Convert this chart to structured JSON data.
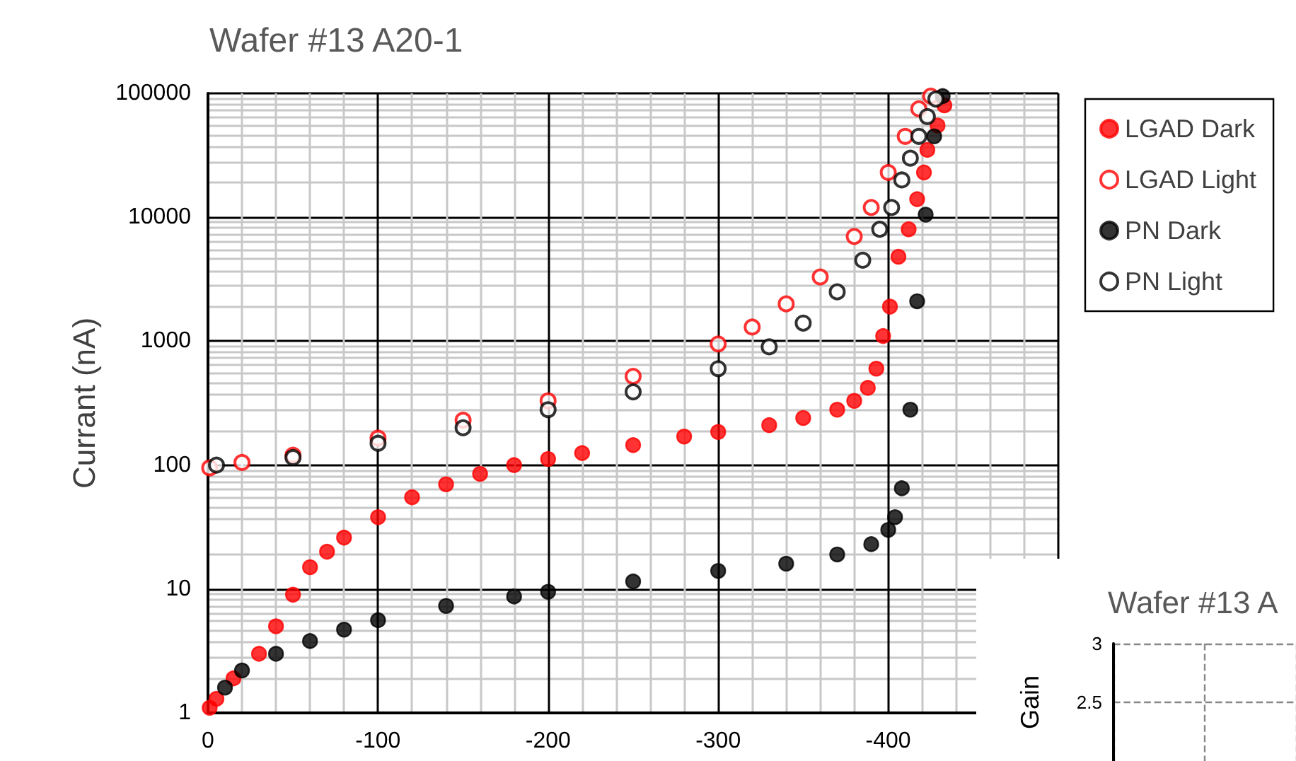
{
  "chart_data": [
    {
      "type": "scatter",
      "title": "Wafer #13 A20-1",
      "ylabel": "Currant (nA)",
      "log": "y",
      "grid": true,
      "legend": "right",
      "marker": "circle",
      "xlim": [
        0,
        -500
      ],
      "xticks": [
        0,
        -100,
        -200,
        -300,
        -400,
        {
          "value": -500,
          "label": null
        }
      ],
      "ylim": [
        1,
        100000
      ],
      "yticks": [
        1,
        10,
        100,
        1000,
        10000,
        100000
      ],
      "series": [
        {
          "name": "LGAD Dark",
          "color": "#ff0000",
          "x": [
            -1,
            -5,
            -15,
            -30,
            -40,
            -50,
            -60,
            -70,
            -80,
            -100,
            -120,
            -140,
            -160,
            -180,
            -200,
            -220,
            -250,
            -280,
            -300,
            -330,
            -350,
            -370,
            -380,
            -388,
            -393,
            -397,
            -401,
            -406,
            -412,
            -417,
            -421,
            -423,
            -429,
            -433
          ],
          "values": [
            1.1,
            1.3,
            1.9,
            3,
            5,
            9,
            15,
            20,
            26,
            38,
            55,
            70,
            85,
            100,
            112,
            125,
            145,
            170,
            185,
            210,
            240,
            280,
            330,
            420,
            600,
            1100,
            1900,
            4800,
            8000,
            14000,
            23000,
            35000,
            55000,
            80000
          ]
        },
        {
          "name": "LGAD Light",
          "color": "#ff0000",
          "marker": "open circle",
          "x": [
            -1,
            -20,
            -50,
            -100,
            -150,
            -200,
            -250,
            -300,
            -320,
            -340,
            -360,
            -380,
            -390,
            -400,
            -410,
            -418,
            -425
          ],
          "values": [
            95,
            105,
            120,
            165,
            230,
            330,
            520,
            950,
            1300,
            2000,
            3300,
            7000,
            12000,
            23000,
            45000,
            75000,
            95000
          ]
        },
        {
          "name": "PN Dark",
          "color": "#000000",
          "x": [
            -10,
            -20,
            -40,
            -60,
            -80,
            -100,
            -140,
            -180,
            -200,
            -250,
            -300,
            -340,
            -370,
            -390,
            -400,
            -404,
            -408,
            -413,
            -417,
            -422,
            -427,
            -432
          ],
          "values": [
            1.6,
            2.2,
            3,
            3.8,
            4.7,
            5.6,
            7.3,
            8.7,
            9.5,
            11.5,
            14,
            16,
            19,
            23,
            30,
            38,
            65,
            280,
            2100,
            10500,
            45000,
            95000
          ]
        },
        {
          "name": "PN Light",
          "color": "#000000",
          "marker": "open circle",
          "x": [
            -5,
            -50,
            -100,
            -150,
            -200,
            -250,
            -300,
            -330,
            -350,
            -370,
            -385,
            -395,
            -402,
            -408,
            -413,
            -418,
            -423,
            -428
          ],
          "values": [
            100,
            115,
            150,
            200,
            280,
            390,
            600,
            900,
            1400,
            2500,
            4500,
            8000,
            12000,
            20000,
            30000,
            45000,
            65000,
            90000
          ]
        }
      ]
    },
    {
      "type": "line",
      "title": "Wafer #13 A",
      "ylabel": "Gain",
      "grid": true,
      "legend": false,
      "categories": [
        null,
        null,
        null
      ],
      "ylim": [
        2,
        3
      ],
      "yticks": [
        2.5,
        3
      ]
    }
  ]
}
